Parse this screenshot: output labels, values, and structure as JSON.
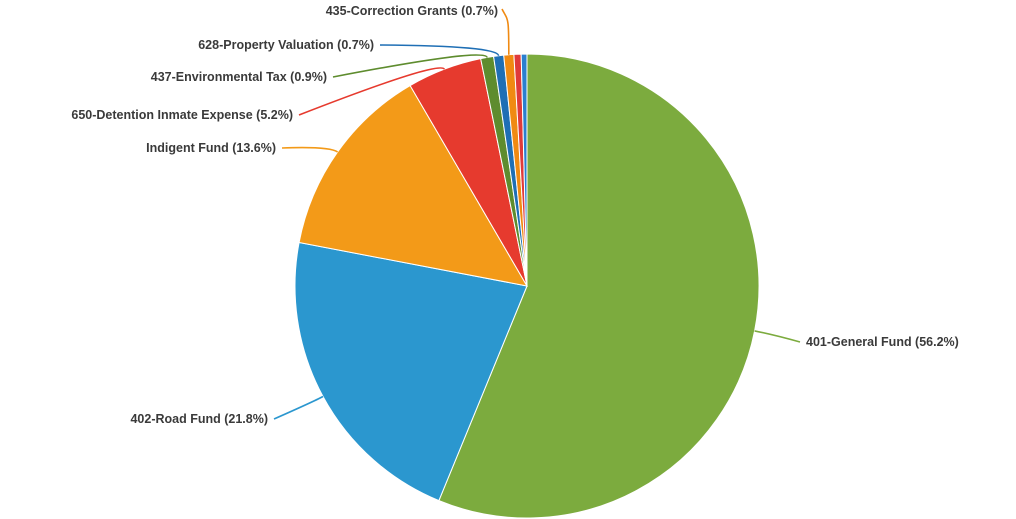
{
  "chart_data": {
    "type": "pie",
    "title": "",
    "slices": [
      {
        "label": "401-General Fund (56.2%)",
        "name": "401-General Fund",
        "value": 56.2,
        "color": "#7cab3e"
      },
      {
        "label": "402-Road Fund (21.8%)",
        "name": "402-Road Fund",
        "value": 21.8,
        "color": "#2b97cf"
      },
      {
        "label": "Indigent Fund (13.6%)",
        "name": "Indigent Fund",
        "value": 13.6,
        "color": "#f39a18"
      },
      {
        "label": "650-Detention Inmate Expense (5.2%)",
        "name": "650-Detention Inmate Expense",
        "value": 5.2,
        "color": "#e63a2e"
      },
      {
        "label": "437-Environmental Tax (0.9%)",
        "name": "437-Environmental Tax",
        "value": 0.9,
        "color": "#5e8c2e"
      },
      {
        "label": "628-Property Valuation (0.7%)",
        "name": "628-Property Valuation",
        "value": 0.7,
        "color": "#1f6fb5"
      },
      {
        "label": "435-Correction Grants (0.7%)",
        "name": "435-Correction Grants",
        "value": 0.7,
        "color": "#f08a12"
      },
      {
        "label": "",
        "name": "",
        "value": 0.5,
        "color": "#e03a3a"
      },
      {
        "label": "",
        "name": "",
        "value": 0.4,
        "color": "#2b7fcf"
      }
    ],
    "legend": "none",
    "start_angle_deg": 0,
    "direction": "clockwise"
  }
}
